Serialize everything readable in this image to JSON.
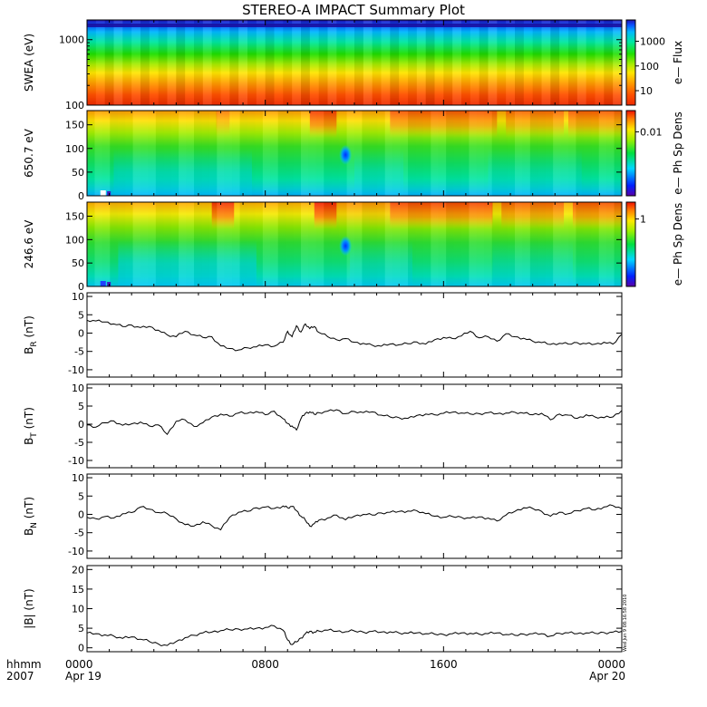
{
  "title": "STEREO-A IMPACT Summary Plot",
  "timestamp": "Wed Jun  9 08:16:58 2010",
  "x_axis": {
    "row1_label": "hhmm",
    "row2_label": "2007",
    "ticks": [
      {
        "t": 0,
        "label": "0000",
        "sub": "Apr 19"
      },
      {
        "t": 8,
        "label": "0800",
        "sub": ""
      },
      {
        "t": 16,
        "label": "1600",
        "sub": ""
      },
      {
        "t": 24,
        "label": "0000",
        "sub": "Apr 20"
      }
    ],
    "range_hours": [
      0,
      24
    ]
  },
  "chart_data": [
    {
      "type": "heatmap",
      "ylabel": "SWEA (eV)",
      "yscale": "log",
      "ylim": [
        100,
        2000
      ],
      "yticks": [
        "1000",
        "100"
      ],
      "colorbar_label": "e— Flux",
      "colorbar_ticks": [
        "1000",
        "100",
        "10"
      ],
      "colorbar_scale": "log",
      "colorbar_range": [
        3,
        8000
      ],
      "features": "flux decreases with energy; red near 100 eV, green ~400 eV, blue near 1500-2000 eV"
    },
    {
      "type": "heatmap",
      "ylabel": "650.7 eV",
      "ylim": [
        0,
        180
      ],
      "yticks": [
        "150",
        "100",
        "50",
        "0"
      ],
      "colorbar_label": "e— Ph Sp Dens",
      "colorbar_ticks": [
        "0.01"
      ],
      "colorbar_scale": "log"
    },
    {
      "type": "heatmap",
      "ylabel": "246.6 eV",
      "ylim": [
        0,
        180
      ],
      "yticks": [
        "150",
        "100",
        "50",
        "0"
      ],
      "colorbar_label": "e— Ph Sp Dens",
      "colorbar_ticks": [
        "1"
      ],
      "colorbar_scale": "log"
    },
    {
      "type": "line",
      "ylabel_main": "B",
      "ylabel_sub": "R",
      "ylabel_unit": "(nT)",
      "ylim": [
        -12,
        11
      ],
      "yticks": [
        "10",
        "5",
        "0",
        "-5",
        "-10"
      ],
      "x": [
        0,
        0.4,
        0.8,
        1.2,
        1.6,
        2.0,
        2.4,
        2.8,
        3.2,
        3.6,
        4.0,
        4.4,
        4.8,
        5.2,
        5.6,
        6.0,
        6.4,
        6.8,
        7.2,
        7.6,
        8.0,
        8.4,
        8.8,
        9.0,
        9.2,
        9.4,
        9.6,
        9.8,
        10.0,
        10.2,
        10.4,
        10.8,
        11.2,
        11.6,
        12.0,
        12.4,
        12.8,
        13.2,
        13.6,
        14.0,
        14.4,
        14.8,
        15.2,
        15.6,
        16.0,
        16.4,
        16.8,
        17.2,
        17.6,
        18.0,
        18.4,
        18.8,
        19.2,
        19.6,
        20.0,
        20.4,
        20.8,
        21.2,
        21.6,
        22.0,
        22.4,
        22.8,
        23.2,
        23.6,
        24.0
      ],
      "y": [
        3.5,
        3.3,
        3.0,
        2.5,
        1.8,
        2.2,
        1.5,
        1.8,
        0.8,
        -0.5,
        -1.0,
        0.5,
        -0.5,
        -1.2,
        -1.0,
        -3.5,
        -4.2,
        -4.6,
        -4.0,
        -3.8,
        -3.2,
        -3.6,
        -2.5,
        0.5,
        -1.0,
        2.0,
        0.3,
        2.5,
        1.2,
        1.8,
        0.2,
        -1.0,
        -1.8,
        -1.5,
        -2.5,
        -2.8,
        -3.3,
        -3.6,
        -3.0,
        -3.2,
        -2.9,
        -2.4,
        -3.0,
        -1.8,
        -1.2,
        -1.5,
        -0.8,
        0.5,
        -1.3,
        -1.0,
        -2.2,
        -0.2,
        -1.0,
        -1.4,
        -2.2,
        -2.6,
        -3.1,
        -2.8,
        -3.0,
        -2.6,
        -2.9,
        -3.0,
        -2.5,
        -3.0,
        -0.3
      ]
    },
    {
      "type": "line",
      "ylabel_main": "B",
      "ylabel_sub": "T",
      "ylabel_unit": "(nT)",
      "ylim": [
        -12,
        11
      ],
      "yticks": [
        "10",
        "5",
        "0",
        "-5",
        "-10"
      ],
      "x": [
        0,
        0.4,
        0.8,
        1.2,
        1.6,
        2.0,
        2.4,
        2.8,
        3.2,
        3.6,
        4.0,
        4.4,
        4.8,
        5.2,
        5.6,
        6.0,
        6.4,
        6.8,
        7.2,
        7.6,
        8.0,
        8.4,
        8.8,
        9.0,
        9.2,
        9.4,
        9.6,
        9.8,
        10.0,
        10.2,
        10.4,
        10.8,
        11.2,
        11.6,
        12.0,
        12.4,
        12.8,
        13.2,
        13.6,
        14.0,
        14.4,
        14.8,
        15.2,
        15.6,
        16.0,
        16.4,
        16.8,
        17.2,
        17.6,
        18.0,
        18.4,
        18.8,
        19.2,
        19.6,
        20.0,
        20.4,
        20.8,
        21.2,
        21.6,
        22.0,
        22.4,
        22.8,
        23.2,
        23.6,
        24.0
      ],
      "y": [
        -0.2,
        -0.8,
        0.4,
        0.9,
        -0.3,
        0.1,
        0.6,
        -0.5,
        -0.2,
        -2.8,
        0.8,
        1.2,
        -0.6,
        0.4,
        2.0,
        2.8,
        2.2,
        3.1,
        3.0,
        3.5,
        2.6,
        3.6,
        1.5,
        0.2,
        -0.5,
        -1.6,
        1.5,
        3.0,
        3.4,
        2.7,
        3.2,
        3.6,
        4.0,
        2.9,
        3.5,
        3.2,
        3.4,
        2.5,
        2.0,
        1.8,
        1.6,
        2.4,
        2.8,
        2.6,
        3.0,
        3.3,
        3.1,
        2.8,
        2.9,
        3.2,
        2.9,
        3.1,
        3.3,
        3.0,
        2.6,
        3.0,
        1.2,
        2.8,
        2.5,
        1.6,
        2.6,
        2.0,
        1.8,
        2.0,
        3.8
      ]
    },
    {
      "type": "line",
      "ylabel_main": "B",
      "ylabel_sub": "N",
      "ylabel_unit": "(nT)",
      "ylim": [
        -12,
        11
      ],
      "yticks": [
        "10",
        "5",
        "0",
        "-5",
        "-10"
      ],
      "x": [
        0,
        0.4,
        0.8,
        1.2,
        1.6,
        2.0,
        2.4,
        2.8,
        3.2,
        3.6,
        4.0,
        4.4,
        4.8,
        5.2,
        5.6,
        6.0,
        6.4,
        6.8,
        7.2,
        7.6,
        8.0,
        8.4,
        8.8,
        9.0,
        9.2,
        9.4,
        9.6,
        9.8,
        10.0,
        10.2,
        10.4,
        10.8,
        11.2,
        11.6,
        12.0,
        12.4,
        12.8,
        13.2,
        13.6,
        14.0,
        14.4,
        14.8,
        15.2,
        15.6,
        16.0,
        16.4,
        16.8,
        17.2,
        17.6,
        18.0,
        18.4,
        18.8,
        19.2,
        19.6,
        20.0,
        20.4,
        20.8,
        21.2,
        21.6,
        22.0,
        22.4,
        22.8,
        23.2,
        23.6,
        24.0
      ],
      "y": [
        -0.8,
        -1.2,
        -0.6,
        -1.0,
        0.2,
        0.5,
        2.0,
        1.4,
        0.5,
        0.2,
        -1.2,
        -2.8,
        -3.2,
        -2.0,
        -3.1,
        -4.2,
        -0.8,
        0.6,
        0.8,
        1.8,
        2.0,
        1.6,
        2.3,
        1.8,
        2.2,
        1.0,
        -0.5,
        -1.6,
        -3.2,
        -2.5,
        -1.6,
        -1.0,
        -0.2,
        -1.5,
        -0.5,
        0.0,
        -0.2,
        0.4,
        0.6,
        0.8,
        0.9,
        1.0,
        0.2,
        -0.5,
        -0.8,
        -0.6,
        -0.8,
        -1.0,
        -0.7,
        -1.0,
        -1.8,
        -0.2,
        0.8,
        1.8,
        1.6,
        0.8,
        -0.5,
        0.6,
        0.2,
        1.0,
        1.6,
        1.2,
        2.0,
        2.4,
        1.5
      ]
    },
    {
      "type": "line",
      "ylabel_main": "|B|",
      "ylabel_sub": "",
      "ylabel_unit": "(nT)",
      "ylim": [
        -1,
        21
      ],
      "yticks": [
        "20",
        "15",
        "10",
        "5",
        "0"
      ],
      "x": [
        0,
        0.4,
        0.8,
        1.2,
        1.6,
        2.0,
        2.4,
        2.8,
        3.2,
        3.6,
        4.0,
        4.4,
        4.8,
        5.2,
        5.6,
        6.0,
        6.4,
        6.8,
        7.2,
        7.6,
        8.0,
        8.4,
        8.8,
        9.0,
        9.2,
        9.4,
        9.6,
        9.8,
        10.0,
        10.2,
        10.4,
        10.8,
        11.2,
        11.6,
        12.0,
        12.4,
        12.8,
        13.2,
        13.6,
        14.0,
        14.4,
        14.8,
        15.2,
        15.6,
        16.0,
        16.4,
        16.8,
        17.2,
        17.6,
        18.0,
        18.4,
        18.8,
        19.2,
        19.6,
        20.0,
        20.4,
        20.8,
        21.2,
        21.6,
        22.0,
        22.4,
        22.8,
        23.2,
        23.6,
        24.0
      ],
      "y": [
        3.8,
        3.6,
        3.3,
        3.0,
        2.4,
        2.8,
        2.2,
        1.6,
        1.0,
        0.6,
        1.6,
        2.6,
        3.2,
        3.8,
        4.0,
        4.4,
        4.6,
        4.8,
        4.8,
        5.0,
        5.2,
        5.6,
        4.5,
        2.0,
        0.8,
        1.5,
        2.5,
        3.6,
        4.2,
        4.0,
        4.3,
        4.5,
        4.2,
        4.1,
        4.3,
        4.0,
        4.2,
        4.0,
        4.1,
        3.8,
        3.7,
        3.8,
        3.6,
        3.5,
        3.4,
        3.6,
        3.8,
        3.7,
        3.5,
        3.6,
        3.8,
        3.4,
        3.2,
        3.5,
        3.6,
        3.6,
        3.0,
        3.7,
        3.8,
        3.6,
        3.8,
        3.7,
        3.9,
        4.0,
        4.2
      ]
    }
  ]
}
